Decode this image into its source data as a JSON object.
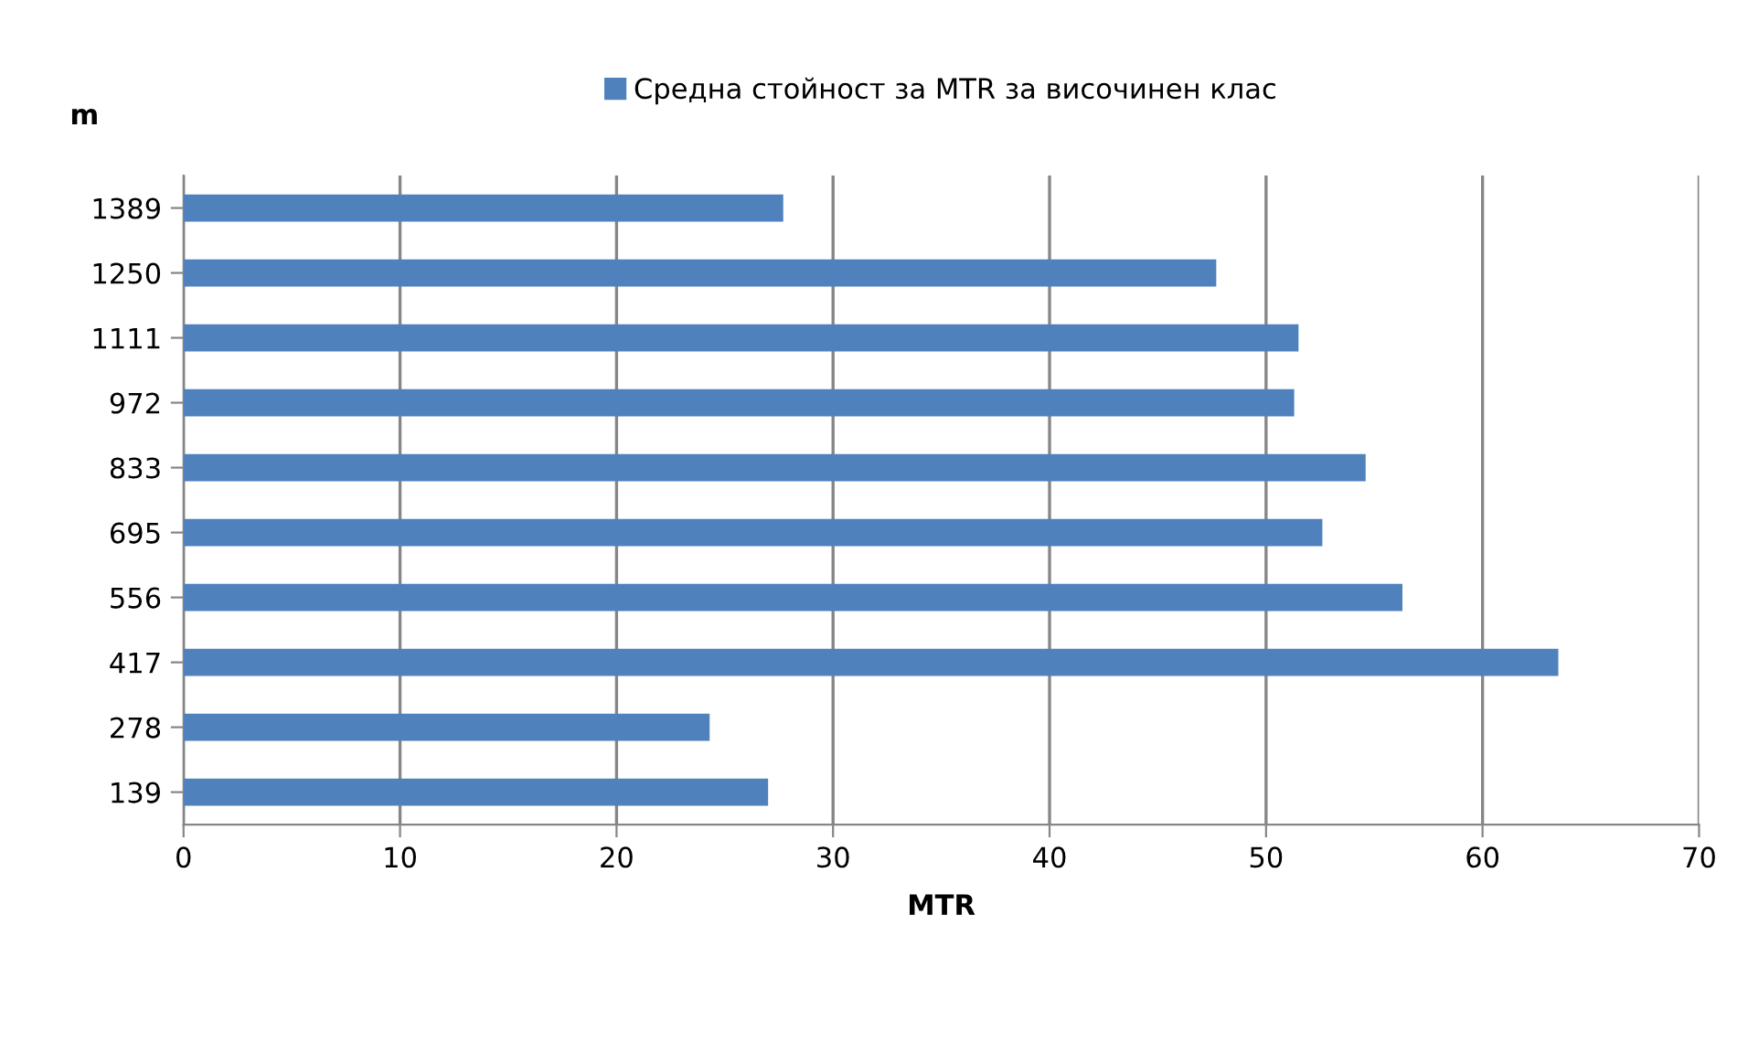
{
  "chart_data": {
    "type": "bar",
    "orientation": "horizontal",
    "xlabel": "MTR",
    "ylabel": "m",
    "categories": [
      "1389",
      "1250",
      "1111",
      "972",
      "833",
      "695",
      "556",
      "417",
      "278",
      "139"
    ],
    "series": [
      {
        "name": "Средна стойност за MTR за височинен клас",
        "color": "#4f81bd",
        "values": [
          27.7,
          47.7,
          51.5,
          51.3,
          54.6,
          52.6,
          56.3,
          63.5,
          24.3,
          27.0
        ]
      }
    ],
    "xlim": [
      0,
      70
    ],
    "xticks": [
      0,
      10,
      20,
      30,
      40,
      50,
      60,
      70
    ],
    "grid": "x",
    "legend": "top"
  }
}
